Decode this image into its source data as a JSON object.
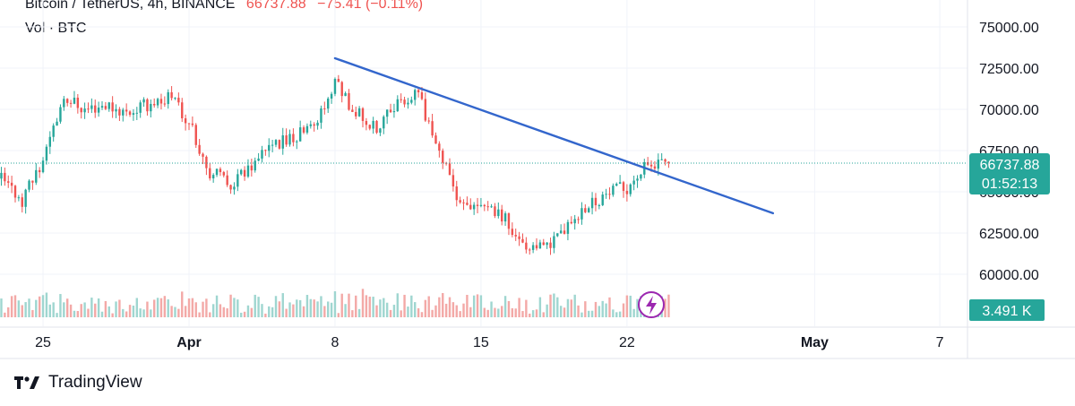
{
  "header": {
    "symbol": "Bitcoin / TetherUS, 4h, BINANCE",
    "last_price": "66737.88",
    "change": "−75.41 (−0.11%)",
    "volume_label": "Vol · BTC"
  },
  "badges": {
    "price": "66737.88",
    "countdown": "01:52:13",
    "volume": "3.491 K"
  },
  "footer": {
    "brand": "TradingView"
  },
  "colors": {
    "up": "#26a69a",
    "down": "#ef5350",
    "trendline": "#3366cc",
    "price_badge": "#26a69a",
    "vol_badge": "#26a69a",
    "lightning": "#9c27b0"
  },
  "icons": {
    "logo": "tradingview-logo-icon",
    "lightning": "lightning-icon"
  },
  "chart_data": {
    "type": "candlestick",
    "y_ticks": [
      "75000.00",
      "72500.00",
      "70000.00",
      "67500.00",
      "65000.00",
      "62500.00",
      "60000.00"
    ],
    "y_tick_values": [
      75000,
      72500,
      70000,
      67500,
      65000,
      62500,
      60000
    ],
    "x_ticks": [
      "25",
      "Apr",
      "8",
      "15",
      "22",
      "May",
      "7"
    ],
    "x_tick_dates": [
      "2024-03-25",
      "2024-04-01",
      "2024-04-08",
      "2024-04-15",
      "2024-04-22",
      "2024-05-01",
      "2024-05-07"
    ],
    "ylim": [
      58000,
      76000
    ],
    "last_price": 66737.88,
    "price_waypoints": [
      {
        "date": "2024-03-23",
        "price": 65800
      },
      {
        "date": "2024-03-24",
        "price": 64500
      },
      {
        "date": "2024-03-25",
        "price": 67000
      },
      {
        "date": "2024-03-26",
        "price": 70800
      },
      {
        "date": "2024-03-27",
        "price": 70000
      },
      {
        "date": "2024-03-28",
        "price": 70300
      },
      {
        "date": "2024-03-29",
        "price": 69800
      },
      {
        "date": "2024-03-31",
        "price": 70800
      },
      {
        "date": "2024-04-01",
        "price": 69300
      },
      {
        "date": "2024-04-02",
        "price": 66200
      },
      {
        "date": "2024-04-03",
        "price": 65500
      },
      {
        "date": "2024-04-04",
        "price": 66500
      },
      {
        "date": "2024-04-05",
        "price": 67700
      },
      {
        "date": "2024-04-06",
        "price": 68300
      },
      {
        "date": "2024-04-07",
        "price": 69000
      },
      {
        "date": "2024-04-08",
        "price": 71500
      },
      {
        "date": "2024-04-09",
        "price": 69800
      },
      {
        "date": "2024-04-10",
        "price": 68700
      },
      {
        "date": "2024-04-11",
        "price": 70500
      },
      {
        "date": "2024-04-12",
        "price": 70800
      },
      {
        "date": "2024-04-13",
        "price": 67500
      },
      {
        "date": "2024-04-14",
        "price": 64000
      },
      {
        "date": "2024-04-15",
        "price": 64500
      },
      {
        "date": "2024-04-16",
        "price": 63600
      },
      {
        "date": "2024-04-17",
        "price": 61800
      },
      {
        "date": "2024-04-18",
        "price": 61500
      },
      {
        "date": "2024-04-19",
        "price": 62500
      },
      {
        "date": "2024-04-20",
        "price": 64200
      },
      {
        "date": "2024-04-21",
        "price": 64800
      },
      {
        "date": "2024-04-22",
        "price": 65300
      },
      {
        "date": "2024-04-23",
        "price": 66600
      },
      {
        "date": "2024-04-24",
        "price": 66737.88
      }
    ],
    "trendline": [
      {
        "date": "2024-04-08",
        "price": 73100
      },
      {
        "date": "2024-04-29",
        "price": 63700
      }
    ],
    "volume_last": "3.491 K"
  }
}
